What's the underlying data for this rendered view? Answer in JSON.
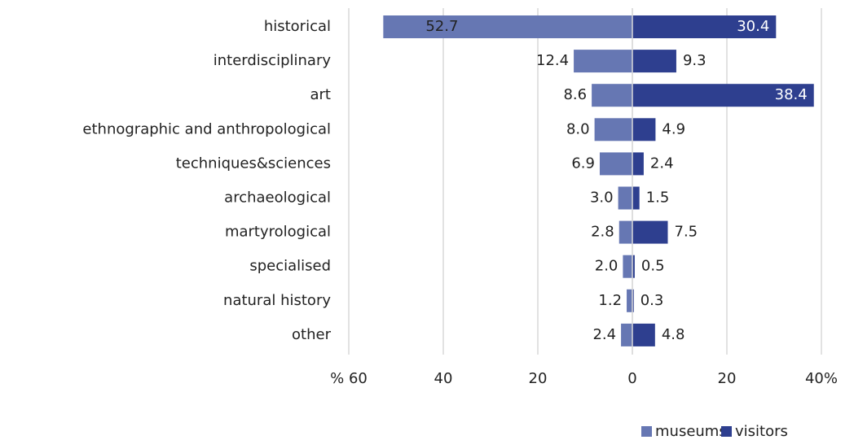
{
  "chart_data": {
    "type": "butterfly-bar",
    "categories": [
      "historical",
      "interdisciplinary",
      "art",
      "ethnographic and anthropological",
      "techniques&sciences",
      "archaeological",
      "martyrological",
      "specialised",
      "natural history",
      "other"
    ],
    "series": [
      {
        "name": "museums",
        "color": "#6677b3",
        "direction": "left",
        "values": [
          52.7,
          12.4,
          8.6,
          8.0,
          6.9,
          3.0,
          2.8,
          2.0,
          1.2,
          2.4
        ],
        "value_labels": [
          "52.7",
          "12.4",
          "8.6",
          "8.0",
          "6.9",
          "3.0",
          "2.8",
          "2.0",
          "1.2",
          "2.4"
        ]
      },
      {
        "name": "visitors",
        "color": "#2e3f8f",
        "direction": "right",
        "values": [
          30.4,
          9.3,
          38.4,
          4.9,
          2.4,
          1.5,
          7.5,
          0.5,
          0.3,
          4.8
        ]
      }
    ],
    "xlim": [
      -60,
      40
    ],
    "xticks": [
      {
        "value": -60,
        "label": "% 60"
      },
      {
        "value": -40,
        "label": "40"
      },
      {
        "value": -20,
        "label": "20"
      },
      0,
      20,
      {
        "value": 40,
        "label": "40%"
      }
    ],
    "grid": true,
    "legend": "bottom"
  }
}
